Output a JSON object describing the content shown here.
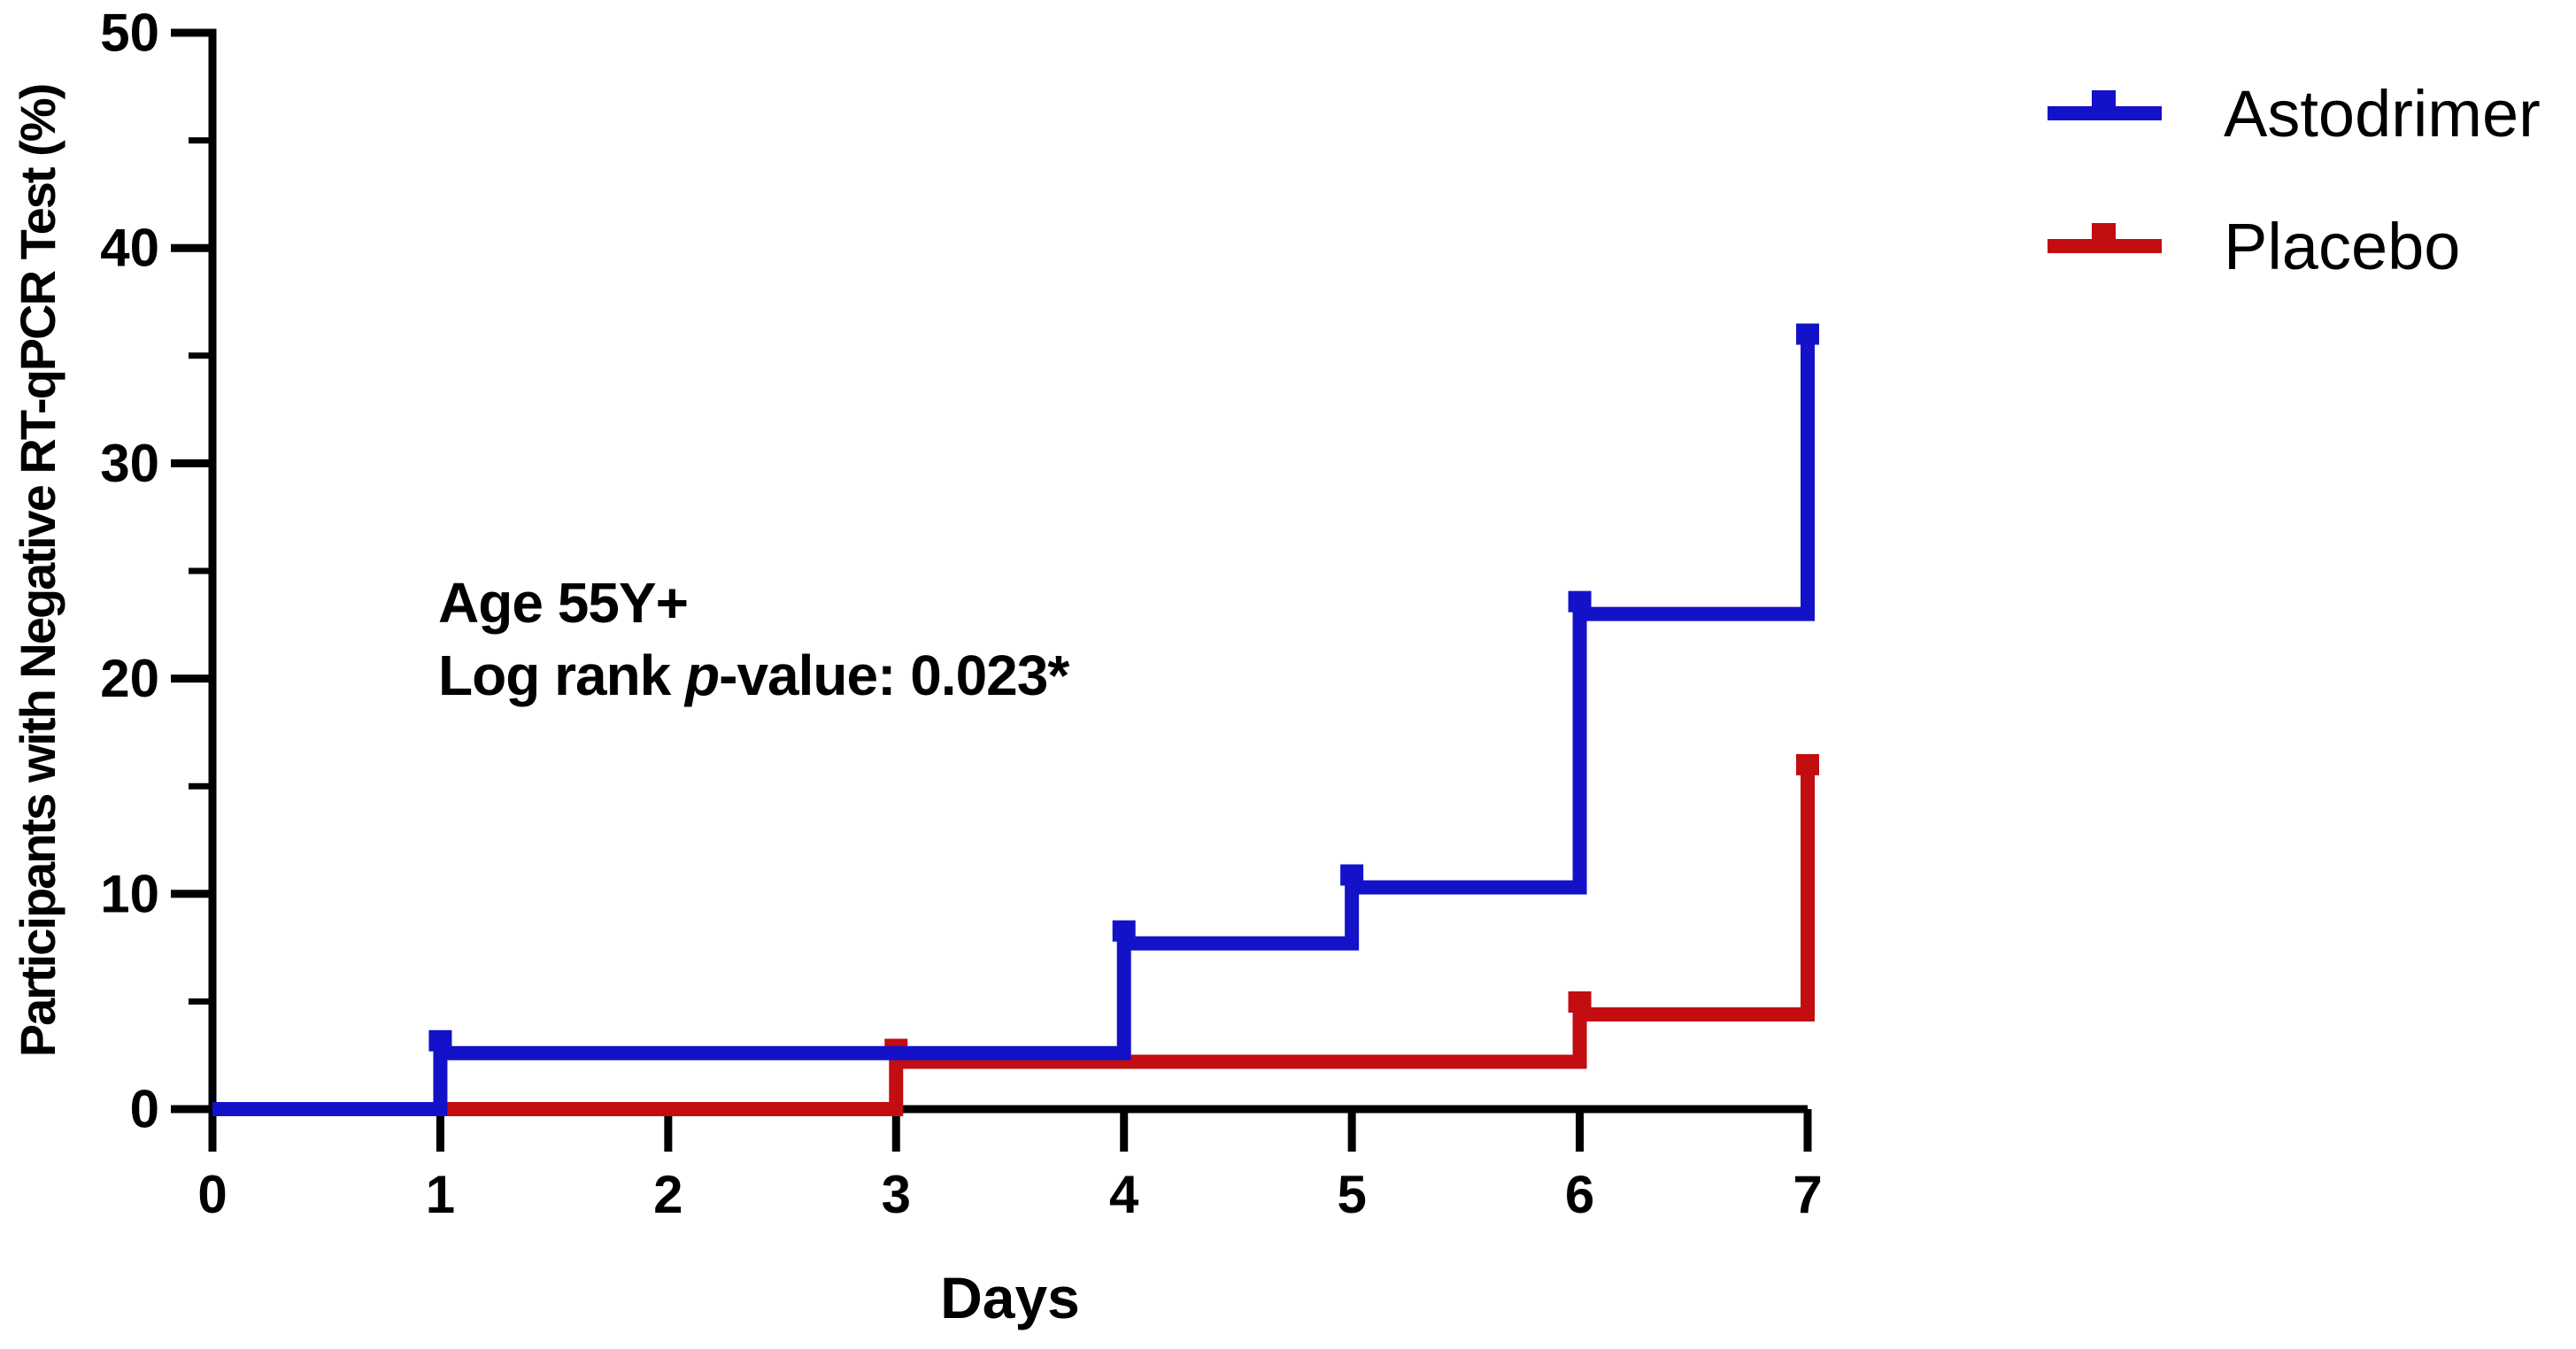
{
  "chart_data": {
    "type": "line",
    "subtype": "kaplan-meier-step",
    "title": "",
    "xlabel": "Days",
    "ylabel": "Participants with Negative RT-qPCR Test (%)",
    "xlim": [
      0,
      7
    ],
    "ylim": [
      0,
      50
    ],
    "x_ticks": [
      0,
      1,
      2,
      3,
      4,
      5,
      6,
      7
    ],
    "y_ticks_major": [
      0,
      10,
      20,
      30,
      40,
      50
    ],
    "y_ticks_minor": [
      5,
      15,
      25,
      35,
      45
    ],
    "grid": "off",
    "legend_position": "top-right",
    "axis_color": "#000000",
    "annotation": {
      "line1": "Age 55Y+",
      "line2_prefix": "Log rank ",
      "line2_italic": "p",
      "line2_suffix": "-value: 0.023*"
    },
    "series": [
      {
        "name": "Astodrimer",
        "color": "#1412c8",
        "step_points": [
          [
            0,
            0
          ],
          [
            1,
            0
          ],
          [
            1,
            2.6
          ],
          [
            4,
            2.6
          ],
          [
            4,
            7.7
          ],
          [
            5,
            7.7
          ],
          [
            5,
            10.3
          ],
          [
            6,
            10.3
          ],
          [
            6,
            23.0
          ],
          [
            7,
            23.0
          ],
          [
            7,
            36.0
          ]
        ],
        "event_markers": [
          [
            1,
            2.6
          ],
          [
            4,
            7.7
          ],
          [
            5,
            10.3
          ],
          [
            6,
            23.0
          ],
          [
            7,
            36.0
          ]
        ]
      },
      {
        "name": "Placebo",
        "color": "#c20d11",
        "step_points": [
          [
            0,
            0
          ],
          [
            3,
            0
          ],
          [
            3,
            2.2
          ],
          [
            6,
            2.2
          ],
          [
            6,
            4.4
          ],
          [
            7,
            4.4
          ],
          [
            7,
            16.0
          ]
        ],
        "event_markers": [
          [
            3,
            2.2
          ],
          [
            6,
            4.4
          ],
          [
            7,
            16.0
          ]
        ]
      }
    ]
  }
}
